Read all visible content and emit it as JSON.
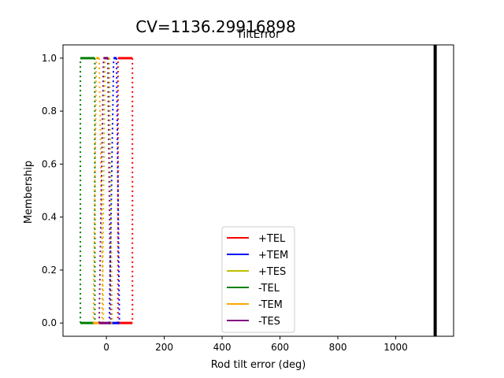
{
  "figure": {
    "suptitle": "CV=1136.29916898"
  },
  "chart_data": {
    "type": "line",
    "title": "TiltError",
    "xlabel": "Rod tilt error (deg)",
    "ylabel": "Membership",
    "xlim": [
      -150,
      1200
    ],
    "ylim": [
      -0.05,
      1.05
    ],
    "xticks": [
      0,
      200,
      400,
      600,
      800,
      1000
    ],
    "xtick_labels": [
      "0",
      "200",
      "400",
      "600",
      "800",
      "1000"
    ],
    "yticks": [
      0.0,
      0.2,
      0.4,
      0.6,
      0.8,
      1.0
    ],
    "ytick_labels": [
      "0.0",
      "0.2",
      "0.4",
      "0.6",
      "0.8",
      "1.0"
    ],
    "grid": false,
    "legend_position": "lower center",
    "cv_marker": {
      "x": 1136.29916898,
      "color": "#000000"
    },
    "series": [
      {
        "name": "+TEL",
        "color": "#ff0000",
        "x": [
          40,
          90,
          90
        ],
        "y": [
          0,
          0,
          1
        ],
        "points": [
          [
            40,
            0
          ],
          [
            40,
            1
          ],
          [
            90,
            1
          ],
          [
            90,
            0
          ]
        ]
      },
      {
        "name": "+TEM",
        "color": "#0000ff",
        "points": [
          [
            10,
            0
          ],
          [
            25,
            1
          ],
          [
            35,
            1
          ],
          [
            45,
            0
          ]
        ]
      },
      {
        "name": "+TES",
        "color": "#bfbf00",
        "points": [
          [
            -15,
            0
          ],
          [
            -5,
            1
          ],
          [
            10,
            1
          ],
          [
            20,
            0
          ]
        ]
      },
      {
        "name": "-TEL",
        "color": "#008000",
        "points": [
          [
            -90,
            0
          ],
          [
            -90,
            1
          ],
          [
            -40,
            1
          ],
          [
            -40,
            0
          ]
        ]
      },
      {
        "name": "-TEM",
        "color": "#ffa500",
        "points": [
          [
            -45,
            0
          ],
          [
            -35,
            1
          ],
          [
            -25,
            1
          ],
          [
            -10,
            0
          ]
        ]
      },
      {
        "name": "-TES",
        "color": "#800080",
        "points": [
          [
            -25,
            0
          ],
          [
            -10,
            1
          ],
          [
            5,
            1
          ],
          [
            15,
            0
          ]
        ]
      }
    ]
  }
}
